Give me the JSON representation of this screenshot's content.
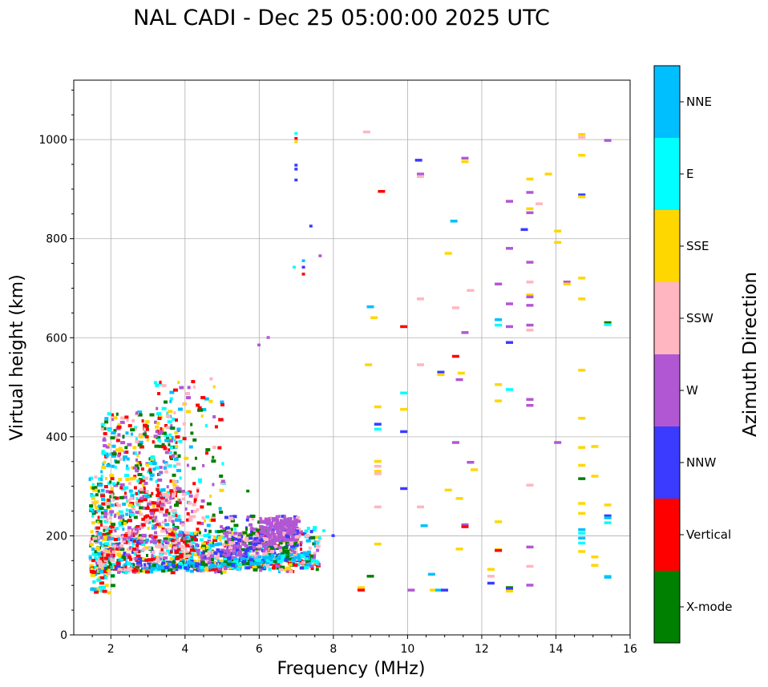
{
  "chart_data": {
    "type": "scatter",
    "title": "NAL CADI - Dec 25 05:00:00 2025 UTC",
    "xlabel": "Frequency (MHz)",
    "ylabel": "Virtual height (km)",
    "xlim": [
      1,
      16
    ],
    "ylim": [
      0,
      1120
    ],
    "xticks": [
      2,
      4,
      6,
      8,
      10,
      12,
      14,
      16
    ],
    "yticks": [
      0,
      200,
      400,
      600,
      800,
      1000
    ],
    "grid": true,
    "colorbar": {
      "title": "Azimuth Direction",
      "categories": [
        {
          "name": "X-mode",
          "color": "#008000"
        },
        {
          "name": "Vertical",
          "color": "#ff0000"
        },
        {
          "name": "NNW",
          "color": "#3b3bff"
        },
        {
          "name": "W",
          "color": "#b257d4"
        },
        {
          "name": "SSW",
          "color": "#ffb6c1"
        },
        {
          "name": "SSE",
          "color": "#ffd700"
        },
        {
          "name": "E",
          "color": "#00ffff"
        },
        {
          "name": "NNE",
          "color": "#00bfff"
        }
      ]
    },
    "clusters": [
      {
        "f": [
          1.4,
          7.6
        ],
        "h": [
          120,
          200
        ],
        "n": 900,
        "c": [
          "Vertical",
          "NNW",
          "NNE",
          "E",
          "X-mode",
          "W",
          "SSW",
          "SSE"
        ]
      },
      {
        "f": [
          1.4,
          2.0
        ],
        "h": [
          85,
          320
        ],
        "n": 160,
        "c": [
          "SSE",
          "E",
          "NNE",
          "Vertical",
          "SSW",
          "X-mode"
        ]
      },
      {
        "f": [
          1.7,
          3.8
        ],
        "h": [
          190,
          450
        ],
        "n": 420,
        "c": [
          "E",
          "NNE",
          "Vertical",
          "SSE",
          "X-mode",
          "W",
          "SSW"
        ]
      },
      {
        "f": [
          3.0,
          5.0
        ],
        "h": [
          140,
          520
        ],
        "n": 160,
        "c": [
          "W",
          "Vertical",
          "E",
          "X-mode",
          "SSW",
          "SSE",
          "NNE"
        ]
      },
      {
        "f": [
          2.4,
          4.5
        ],
        "h": [
          150,
          300
        ],
        "n": 140,
        "c": [
          "SSW",
          "W",
          "Vertical"
        ]
      },
      {
        "f": [
          5.0,
          7.0
        ],
        "h": [
          150,
          240
        ],
        "n": 220,
        "c": [
          "W",
          "NNW",
          "SSW",
          "X-mode"
        ]
      },
      {
        "f": [
          6.0,
          7.0
        ],
        "h": [
          190,
          235
        ],
        "n": 150,
        "c": [
          "W"
        ]
      }
    ],
    "points": [
      {
        "f": 6.95,
        "h": 1012,
        "c": "E"
      },
      {
        "f": 6.95,
        "h": 1002,
        "c": "Vertical"
      },
      {
        "f": 6.95,
        "h": 995,
        "c": "SSE"
      },
      {
        "f": 6.95,
        "h": 948,
        "c": "NNW"
      },
      {
        "f": 6.95,
        "h": 940,
        "c": "NNW"
      },
      {
        "f": 6.95,
        "h": 918,
        "c": "NNW"
      },
      {
        "f": 7.35,
        "h": 825,
        "c": "NNW"
      },
      {
        "f": 7.6,
        "h": 765,
        "c": "W"
      },
      {
        "f": 7.15,
        "h": 755,
        "c": "NNE"
      },
      {
        "f": 7.15,
        "h": 742,
        "c": "NNW"
      },
      {
        "f": 7.15,
        "h": 728,
        "c": "Vertical"
      },
      {
        "f": 6.9,
        "h": 742,
        "c": "E"
      },
      {
        "f": 6.2,
        "h": 600,
        "c": "W"
      },
      {
        "f": 5.95,
        "h": 585,
        "c": "W"
      },
      {
        "f": 5.65,
        "h": 290,
        "c": "X-mode"
      },
      {
        "f": 7.7,
        "h": 210,
        "c": "E"
      },
      {
        "f": 7.95,
        "h": 200,
        "c": "NNW"
      },
      {
        "f": 8.8,
        "h": 1015,
        "c": "SSW"
      },
      {
        "f": 9.2,
        "h": 895,
        "c": "Vertical"
      },
      {
        "f": 8.9,
        "h": 662,
        "c": "NNE"
      },
      {
        "f": 9.0,
        "h": 640,
        "c": "SSE"
      },
      {
        "f": 8.85,
        "h": 545,
        "c": "SSE"
      },
      {
        "f": 9.1,
        "h": 460,
        "c": "SSE"
      },
      {
        "f": 9.1,
        "h": 425,
        "c": "NNW"
      },
      {
        "f": 9.1,
        "h": 415,
        "c": "E"
      },
      {
        "f": 9.1,
        "h": 350,
        "c": "SSE"
      },
      {
        "f": 9.1,
        "h": 340,
        "c": "SSW"
      },
      {
        "f": 9.1,
        "h": 330,
        "c": "SSE"
      },
      {
        "f": 9.1,
        "h": 325,
        "c": "SSW"
      },
      {
        "f": 9.1,
        "h": 258,
        "c": "SSW"
      },
      {
        "f": 9.1,
        "h": 183,
        "c": "SSE"
      },
      {
        "f": 8.9,
        "h": 118,
        "c": "X-mode"
      },
      {
        "f": 8.65,
        "h": 95,
        "c": "SSE"
      },
      {
        "f": 8.65,
        "h": 90,
        "c": "Vertical"
      },
      {
        "f": 9.8,
        "h": 622,
        "c": "Vertical"
      },
      {
        "f": 9.8,
        "h": 488,
        "c": "E"
      },
      {
        "f": 9.8,
        "h": 455,
        "c": "SSE"
      },
      {
        "f": 9.8,
        "h": 410,
        "c": "NNW"
      },
      {
        "f": 9.8,
        "h": 295,
        "c": "NNW"
      },
      {
        "f": 10.0,
        "h": 90,
        "c": "W"
      },
      {
        "f": 10.2,
        "h": 958,
        "c": "NNW"
      },
      {
        "f": 10.25,
        "h": 930,
        "c": "W"
      },
      {
        "f": 10.25,
        "h": 925,
        "c": "SSW"
      },
      {
        "f": 10.25,
        "h": 678,
        "c": "SSW"
      },
      {
        "f": 10.25,
        "h": 545,
        "c": "SSW"
      },
      {
        "f": 10.25,
        "h": 258,
        "c": "SSW"
      },
      {
        "f": 10.35,
        "h": 220,
        "c": "NNE"
      },
      {
        "f": 10.55,
        "h": 122,
        "c": "NNE"
      },
      {
        "f": 10.6,
        "h": 90,
        "c": "SSE"
      },
      {
        "f": 10.75,
        "h": 90,
        "c": "NNE"
      },
      {
        "f": 10.9,
        "h": 90,
        "c": "NNW"
      },
      {
        "f": 10.8,
        "h": 530,
        "c": "NNW"
      },
      {
        "f": 10.8,
        "h": 525,
        "c": "SSE"
      },
      {
        "f": 11.0,
        "h": 770,
        "c": "SSE"
      },
      {
        "f": 11.0,
        "h": 292,
        "c": "SSE"
      },
      {
        "f": 11.15,
        "h": 835,
        "c": "NNE"
      },
      {
        "f": 11.2,
        "h": 660,
        "c": "SSW"
      },
      {
        "f": 11.2,
        "h": 562,
        "c": "Vertical"
      },
      {
        "f": 11.2,
        "h": 388,
        "c": "W"
      },
      {
        "f": 11.35,
        "h": 528,
        "c": "SSE"
      },
      {
        "f": 11.3,
        "h": 515,
        "c": "W"
      },
      {
        "f": 11.3,
        "h": 275,
        "c": "SSE"
      },
      {
        "f": 11.3,
        "h": 173,
        "c": "SSE"
      },
      {
        "f": 11.45,
        "h": 962,
        "c": "W"
      },
      {
        "f": 11.45,
        "h": 955,
        "c": "SSE"
      },
      {
        "f": 11.45,
        "h": 610,
        "c": "W"
      },
      {
        "f": 11.45,
        "h": 222,
        "c": "W"
      },
      {
        "f": 11.45,
        "h": 218,
        "c": "Vertical"
      },
      {
        "f": 11.6,
        "h": 695,
        "c": "SSW"
      },
      {
        "f": 11.6,
        "h": 348,
        "c": "W"
      },
      {
        "f": 11.7,
        "h": 333,
        "c": "SSE"
      },
      {
        "f": 12.15,
        "h": 132,
        "c": "SSE"
      },
      {
        "f": 12.15,
        "h": 118,
        "c": "SSW"
      },
      {
        "f": 12.15,
        "h": 104,
        "c": "NNW"
      },
      {
        "f": 12.35,
        "h": 708,
        "c": "W"
      },
      {
        "f": 12.35,
        "h": 636,
        "c": "NNE"
      },
      {
        "f": 12.35,
        "h": 625,
        "c": "E"
      },
      {
        "f": 12.35,
        "h": 505,
        "c": "SSE"
      },
      {
        "f": 12.35,
        "h": 472,
        "c": "SSE"
      },
      {
        "f": 12.35,
        "h": 228,
        "c": "SSE"
      },
      {
        "f": 12.35,
        "h": 172,
        "c": "SSE"
      },
      {
        "f": 12.35,
        "h": 170,
        "c": "Vertical"
      },
      {
        "f": 12.65,
        "h": 875,
        "c": "W"
      },
      {
        "f": 12.65,
        "h": 780,
        "c": "W"
      },
      {
        "f": 12.65,
        "h": 668,
        "c": "W"
      },
      {
        "f": 12.65,
        "h": 622,
        "c": "W"
      },
      {
        "f": 12.65,
        "h": 590,
        "c": "NNW"
      },
      {
        "f": 12.65,
        "h": 495,
        "c": "E"
      },
      {
        "f": 12.65,
        "h": 95,
        "c": "X-mode"
      },
      {
        "f": 12.65,
        "h": 92,
        "c": "NNW"
      },
      {
        "f": 12.65,
        "h": 88,
        "c": "SSE"
      },
      {
        "f": 13.05,
        "h": 818,
        "c": "NNW"
      },
      {
        "f": 13.2,
        "h": 920,
        "c": "SSE"
      },
      {
        "f": 13.2,
        "h": 893,
        "c": "W"
      },
      {
        "f": 13.2,
        "h": 860,
        "c": "SSE"
      },
      {
        "f": 13.2,
        "h": 852,
        "c": "W"
      },
      {
        "f": 13.2,
        "h": 752,
        "c": "W"
      },
      {
        "f": 13.2,
        "h": 712,
        "c": "SSW"
      },
      {
        "f": 13.2,
        "h": 686,
        "c": "SSE"
      },
      {
        "f": 13.2,
        "h": 682,
        "c": "W"
      },
      {
        "f": 13.2,
        "h": 665,
        "c": "W"
      },
      {
        "f": 13.2,
        "h": 625,
        "c": "W"
      },
      {
        "f": 13.2,
        "h": 615,
        "c": "SSW"
      },
      {
        "f": 13.2,
        "h": 475,
        "c": "W"
      },
      {
        "f": 13.2,
        "h": 463,
        "c": "W"
      },
      {
        "f": 13.2,
        "h": 302,
        "c": "SSW"
      },
      {
        "f": 13.2,
        "h": 177,
        "c": "W"
      },
      {
        "f": 13.2,
        "h": 138,
        "c": "SSW"
      },
      {
        "f": 13.2,
        "h": 100,
        "c": "W"
      },
      {
        "f": 13.45,
        "h": 870,
        "c": "SSW"
      },
      {
        "f": 13.7,
        "h": 930,
        "c": "SSE"
      },
      {
        "f": 13.95,
        "h": 815,
        "c": "SSE"
      },
      {
        "f": 13.95,
        "h": 792,
        "c": "SSE"
      },
      {
        "f": 13.95,
        "h": 388,
        "c": "W"
      },
      {
        "f": 14.2,
        "h": 712,
        "c": "W"
      },
      {
        "f": 14.2,
        "h": 708,
        "c": "SSE"
      },
      {
        "f": 14.6,
        "h": 1010,
        "c": "SSE"
      },
      {
        "f": 14.6,
        "h": 1004,
        "c": "SSW"
      },
      {
        "f": 14.6,
        "h": 968,
        "c": "SSE"
      },
      {
        "f": 14.6,
        "h": 888,
        "c": "NNW"
      },
      {
        "f": 14.6,
        "h": 884,
        "c": "SSE"
      },
      {
        "f": 14.6,
        "h": 720,
        "c": "SSE"
      },
      {
        "f": 14.6,
        "h": 678,
        "c": "SSE"
      },
      {
        "f": 14.6,
        "h": 534,
        "c": "SSE"
      },
      {
        "f": 14.6,
        "h": 437,
        "c": "SSE"
      },
      {
        "f": 14.6,
        "h": 378,
        "c": "SSE"
      },
      {
        "f": 14.6,
        "h": 342,
        "c": "SSE"
      },
      {
        "f": 14.6,
        "h": 315,
        "c": "X-mode"
      },
      {
        "f": 14.6,
        "h": 265,
        "c": "SSE"
      },
      {
        "f": 14.6,
        "h": 245,
        "c": "SSE"
      },
      {
        "f": 14.6,
        "h": 212,
        "c": "NNE"
      },
      {
        "f": 14.6,
        "h": 205,
        "c": "E"
      },
      {
        "f": 14.6,
        "h": 195,
        "c": "NNE"
      },
      {
        "f": 14.6,
        "h": 185,
        "c": "E"
      },
      {
        "f": 14.6,
        "h": 168,
        "c": "SSE"
      },
      {
        "f": 14.95,
        "h": 380,
        "c": "SSE"
      },
      {
        "f": 14.95,
        "h": 320,
        "c": "SSE"
      },
      {
        "f": 14.95,
        "h": 157,
        "c": "SSE"
      },
      {
        "f": 14.95,
        "h": 140,
        "c": "SSE"
      },
      {
        "f": 15.3,
        "h": 998,
        "c": "W"
      },
      {
        "f": 15.3,
        "h": 630,
        "c": "X-mode"
      },
      {
        "f": 15.3,
        "h": 626,
        "c": "E"
      },
      {
        "f": 15.3,
        "h": 262,
        "c": "SSE"
      },
      {
        "f": 15.3,
        "h": 240,
        "c": "NNW"
      },
      {
        "f": 15.3,
        "h": 236,
        "c": "NNE"
      },
      {
        "f": 15.3,
        "h": 226,
        "c": "E"
      },
      {
        "f": 15.3,
        "h": 118,
        "c": "E"
      },
      {
        "f": 15.3,
        "h": 116,
        "c": "NNE"
      }
    ]
  }
}
